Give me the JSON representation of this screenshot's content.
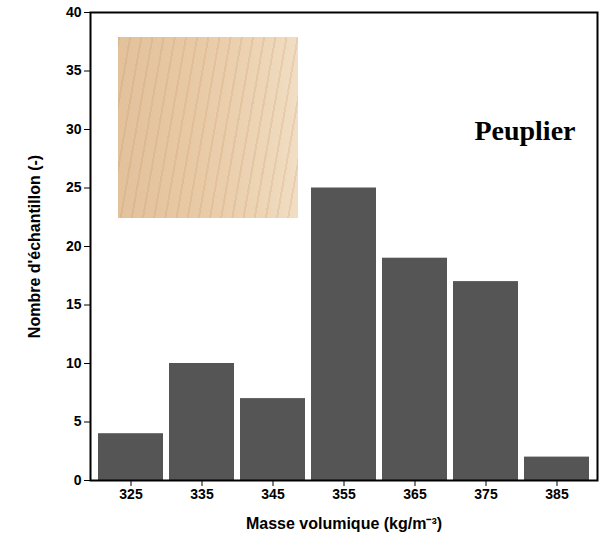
{
  "chart_data": {
    "type": "bar",
    "title": "Peuplier",
    "x_label": "Masse volumique (kg/m⁻³)",
    "y_label": "Nombre d'échantillon (-)",
    "categories": [
      "325",
      "335",
      "345",
      "355",
      "365",
      "375",
      "385"
    ],
    "values": [
      4,
      10,
      7,
      25,
      19,
      17,
      2
    ],
    "color": "#555555",
    "ylim": [
      0,
      40
    ],
    "yticks": [
      0,
      5,
      10,
      15,
      20,
      25,
      30,
      35,
      40
    ],
    "grid": false
  }
}
